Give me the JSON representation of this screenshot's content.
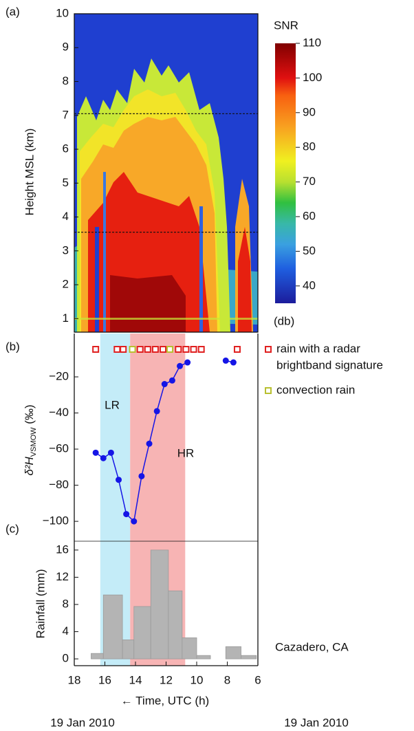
{
  "chart_data": [
    {
      "type": "heatmap",
      "panel_label": "(a)",
      "ylabel": "Height MSL (km)",
      "xlim": [
        18,
        6
      ],
      "ylim": [
        0.6,
        10
      ],
      "yticks": [
        1,
        2,
        3,
        4,
        5,
        6,
        7,
        8,
        9,
        10
      ],
      "dashed_lines": [
        7.05,
        3.55
      ],
      "colorbar": {
        "title": "SNR",
        "unit": "(db)",
        "clim": [
          35,
          110
        ],
        "ticks": [
          40,
          50,
          60,
          70,
          80,
          90,
          100,
          110
        ],
        "colormap": [
          {
            "value": 35,
            "color": "#1c1c9c"
          },
          {
            "value": 45,
            "color": "#1f5fe0"
          },
          {
            "value": 52,
            "color": "#3aa0e0"
          },
          {
            "value": 58,
            "color": "#38b8a8"
          },
          {
            "value": 64,
            "color": "#30c040"
          },
          {
            "value": 70,
            "color": "#b8e030"
          },
          {
            "value": 76,
            "color": "#f0f020"
          },
          {
            "value": 86,
            "color": "#f8a020"
          },
          {
            "value": 95,
            "color": "#f86010"
          },
          {
            "value": 100,
            "color": "#e01010"
          },
          {
            "value": 110,
            "color": "#800000"
          }
        ]
      }
    },
    {
      "type": "line",
      "panel_label": "(b)",
      "ylabel": "δ²H",
      "ylabel_sub": "VSMOW",
      "ylabel_unit": " (‰)",
      "xlim": [
        18,
        6
      ],
      "ylim": [
        -111,
        4
      ],
      "yticks": [
        {
          "value": -20,
          "label": "−20"
        },
        {
          "value": -40,
          "label": "−40"
        },
        {
          "value": -60,
          "label": "−60"
        },
        {
          "value": -80,
          "label": "−80"
        },
        {
          "value": -100,
          "label": "−100"
        }
      ],
      "series": [
        {
          "color": "#1515e6",
          "x": [
            16.6,
            16.1,
            15.6,
            15.1,
            14.6,
            14.1,
            13.6,
            13.1,
            12.6,
            12.1,
            11.6,
            11.1,
            10.6,
            9.35,
            8.1,
            7.6
          ],
          "values": [
            -62,
            -65,
            -62,
            -77,
            -96,
            -100,
            -75,
            -57,
            -39,
            -24,
            -22,
            -14,
            -12,
            null,
            -11,
            -12
          ]
        }
      ],
      "markers": [
        {
          "label_lines": [
            "rain with a radar",
            "brightband signature"
          ],
          "color": "#e02020",
          "x": [
            16.6,
            15.2,
            14.8,
            13.7,
            13.2,
            12.7,
            12.2,
            11.2,
            10.7,
            10.2,
            9.7,
            7.35
          ]
        },
        {
          "label_lines": [
            "convection rain"
          ],
          "color": "#b8c030",
          "x": [
            14.2,
            11.75
          ]
        }
      ],
      "periods": [
        {
          "label": "LR",
          "from": 16.3,
          "to": 14.35,
          "color": "#c4ecf8"
        },
        {
          "label": "HR",
          "from": 14.35,
          "to": 10.75,
          "color": "#f7b4b4"
        }
      ]
    },
    {
      "type": "histogram",
      "panel_label": "(c)",
      "ylabel": "Rainfall (mm)",
      "color": "#b4b4b4",
      "xlim": [
        18,
        6
      ],
      "xticks": [
        18,
        16,
        14,
        12,
        10,
        8,
        6
      ],
      "ylim": [
        -1,
        17.3
      ],
      "yticks": [
        0,
        4,
        8,
        12,
        16
      ],
      "bins": [
        16.9,
        16.1,
        14.85,
        14.1,
        13.0,
        11.85,
        10.95,
        10.0,
        9.1,
        8.1,
        7.1,
        6.1
      ],
      "values": [
        0.8,
        9.4,
        2.8,
        7.7,
        16,
        10,
        3.1,
        0.5,
        0,
        1.8,
        0.5
      ],
      "xlabel": "← Time, UTC (h)",
      "date_labels": [
        "19 Jan 2010",
        "19 Jan 2010"
      ],
      "annotation": "Cazadero, CA"
    }
  ]
}
